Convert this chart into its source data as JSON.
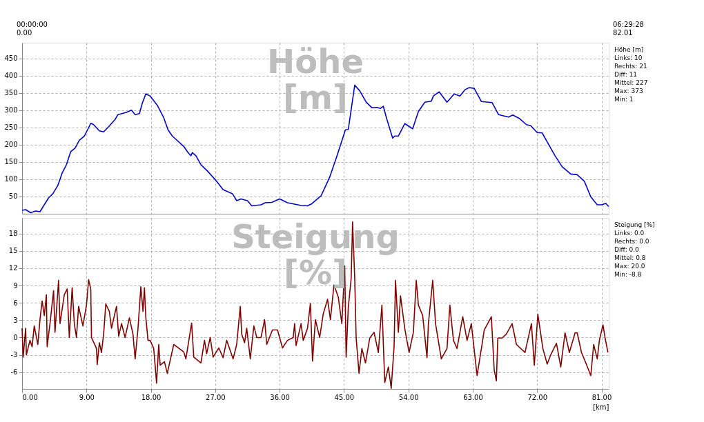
{
  "chart_data": [
    {
      "type": "line",
      "title": "Höhe [m]",
      "xlim": [
        0,
        82.01
      ],
      "ylim": [
        0,
        495
      ],
      "yticks": [
        50,
        100,
        150,
        200,
        250,
        300,
        350,
        400,
        450
      ],
      "xticks": [
        0,
        9,
        18,
        27,
        36,
        45,
        54,
        63,
        72,
        81
      ],
      "tick_labels": "y",
      "grid": true,
      "annotations": [
        "00:00:00",
        "0.00",
        "06:29:28",
        "82.01",
        "Höhe [m]",
        "Links: 10",
        "Rechts: 21",
        "Diff: 11",
        "Mittel: 227",
        "Max: 373",
        "Min: 1"
      ],
      "series": [
        {
          "color": "#0000cc",
          "x": [
            0,
            0.5,
            1.2,
            1.9,
            2.5,
            3.1,
            3.7,
            4.3,
            5.0,
            5.6,
            6.2,
            6.8,
            7.4,
            8.0,
            8.7,
            9.3,
            9.6,
            10.0,
            10.8,
            11.4,
            12.1,
            13.0,
            13.4,
            14.5,
            15.3,
            15.8,
            16.4,
            16.8,
            17.3,
            17.9,
            18.9,
            19.8,
            20.4,
            21.0,
            22.6,
            23.2,
            23.6,
            23.8,
            24.3,
            25.0,
            25.9,
            27.2,
            28.1,
            29.4,
            30.0,
            30.6,
            31.5,
            32.1,
            33.4,
            34.0,
            34.9,
            36.0,
            37.1,
            38.3,
            39.0,
            39.9,
            40.5,
            41.8,
            43.0,
            43.9,
            45.2,
            45.6,
            46.5,
            47.2,
            48.1,
            48.9,
            49.6,
            50.1,
            50.5,
            51.0,
            51.8,
            52.1,
            52.6,
            53.5,
            54.6,
            55.4,
            56.3,
            57.2,
            57.5,
            58.3,
            59.4,
            60.4,
            61.2,
            61.9,
            62.5,
            63.2,
            64.2,
            65.7,
            66.6,
            68.0,
            68.6,
            69.5,
            70.5,
            71.1,
            72.0,
            72.7,
            73.6,
            74.5,
            75.5,
            76.7,
            77.6,
            78.6,
            79.5,
            80.4,
            81.0,
            81.6,
            82.0
          ],
          "values": [
            10,
            12,
            3,
            8,
            6,
            26,
            46,
            58,
            82,
            118,
            142,
            180,
            190,
            213,
            225,
            249,
            262,
            258,
            240,
            237,
            252,
            273,
            287,
            293,
            300,
            287,
            290,
            320,
            347,
            341,
            314,
            278,
            243,
            225,
            195,
            177,
            168,
            177,
            168,
            142,
            124,
            94,
            70,
            58,
            38,
            43,
            38,
            23,
            26,
            32,
            33,
            43,
            32,
            27,
            24,
            23,
            29,
            52,
            106,
            160,
            243,
            244,
            372,
            356,
            323,
            307,
            308,
            305,
            311,
            273,
            219,
            225,
            225,
            261,
            246,
            296,
            323,
            326,
            341,
            353,
            323,
            347,
            341,
            359,
            365,
            363,
            325,
            322,
            287,
            280,
            286,
            276,
            258,
            255,
            235,
            234,
            201,
            168,
            136,
            115,
            113,
            94,
            49,
            26,
            26,
            30,
            21
          ]
        }
      ]
    },
    {
      "type": "line",
      "title": "Steigung [%]",
      "xlabel": "[km]",
      "xlim": [
        0,
        82.01
      ],
      "ylim": [
        -8.9,
        20.7
      ],
      "yticks": [
        -6,
        -3,
        0,
        3,
        6,
        9,
        12,
        15,
        18
      ],
      "xticks": [
        {
          "value": 0,
          "label": "0.00"
        },
        {
          "value": 9,
          "label": "9.00"
        },
        {
          "value": 18,
          "label": "18.00"
        },
        {
          "value": 27,
          "label": "27.00"
        },
        {
          "value": 36,
          "label": "36.00"
        },
        {
          "value": 45,
          "label": "45.00"
        },
        {
          "value": 54,
          "label": "54.00"
        },
        {
          "value": 63,
          "label": "63.00"
        },
        {
          "value": 72,
          "label": "72.00"
        },
        {
          "value": 81,
          "label": "81.00"
        }
      ],
      "grid": true,
      "annotations": [
        "Steigung [%]",
        "Links: 0.0",
        "Rechts: 0.0",
        "Diff: 0.0",
        "Mittel: 0.8",
        "Max: 20.0",
        "Min: -8.8"
      ],
      "series": [
        {
          "color": "#800000",
          "x": [
            0,
            0.15,
            0.5,
            0.6,
            1.1,
            1.4,
            1.7,
            2.2,
            2.5,
            2.8,
            3.1,
            3.4,
            3.5,
            3.9,
            4.4,
            4.6,
            5.1,
            5.3,
            5.9,
            6.3,
            6.6,
            7.0,
            7.3,
            7.6,
            7.9,
            8.5,
            9.0,
            9.3,
            9.6,
            9.7,
            10.4,
            10.5,
            10.8,
            11.1,
            11.4,
            11.7,
            12.2,
            12.5,
            13.2,
            13.5,
            13.9,
            14.4,
            15.0,
            15.5,
            15.8,
            16.2,
            16.6,
            16.9,
            17.1,
            17.3,
            17.6,
            17.9,
            18.4,
            18.8,
            19.1,
            19.3,
            19.9,
            20.3,
            21.0,
            21.2,
            22.6,
            22.9,
            23.7,
            24.0,
            25.0,
            25.5,
            25.8,
            26.3,
            26.7,
            27.5,
            28.1,
            28.6,
            29.5,
            30.0,
            30.5,
            30.7,
            31.1,
            31.4,
            31.9,
            32.4,
            32.8,
            33.4,
            33.9,
            34.2,
            35.0,
            35.7,
            36.4,
            37.1,
            37.9,
            38.1,
            38.3,
            39.0,
            39.3,
            39.9,
            40.3,
            40.6,
            41.0,
            41.6,
            42.1,
            42.7,
            43.1,
            43.6,
            44.2,
            44.7,
            45.1,
            45.3,
            45.6,
            46.0,
            46.2,
            46.5,
            46.7,
            47.1,
            47.5,
            48.0,
            48.6,
            49.2,
            49.8,
            50.3,
            50.7,
            51.2,
            51.6,
            52.0,
            52.2,
            52.6,
            52.9,
            53.5,
            54.1,
            54.7,
            55.1,
            55.4,
            56.0,
            56.6,
            56.8,
            57.4,
            57.8,
            58.6,
            59.4,
            59.8,
            60.3,
            60.8,
            61.6,
            62.2,
            62.8,
            63.6,
            64.3,
            64.6,
            65.6,
            66.0,
            66.3,
            66.5,
            67.1,
            67.7,
            68.5,
            69.1,
            70.3,
            71.2,
            71.6,
            72.1,
            72.8,
            73.4,
            73.9,
            74.7,
            75.3,
            75.9,
            76.5,
            77.3,
            77.6,
            78.2,
            78.8,
            79.5,
            79.9,
            80.4,
            80.7,
            81.2,
            81.5,
            81.9
          ],
          "values": [
            1.6,
            -3.4,
            1.6,
            -3,
            -0.5,
            -1.6,
            2,
            -1.2,
            3.1,
            6.3,
            3.8,
            7.4,
            -1.6,
            2.4,
            8.1,
            0.9,
            9.9,
            2.4,
            7.4,
            8.4,
            0,
            8.6,
            2.4,
            0,
            5.4,
            2,
            5.6,
            10,
            8.4,
            0,
            -1.9,
            -4.7,
            -0.9,
            -2.6,
            0.6,
            5.8,
            4.5,
            1.6,
            5.4,
            0.2,
            2.4,
            0,
            3.4,
            0.6,
            -3.7,
            1.5,
            8.8,
            4.5,
            8.6,
            3.4,
            -0.5,
            -0.5,
            -1.9,
            -7.9,
            -1.2,
            -4.8,
            -4.2,
            -6.2,
            -2.3,
            -1.2,
            -2.5,
            -3.7,
            2.5,
            -3.4,
            -4.4,
            -0.5,
            -2.8,
            0,
            -3.4,
            -1.8,
            -3.5,
            -0.5,
            -3.7,
            -1.2,
            5.4,
            0.6,
            -0.9,
            1.6,
            -3.7,
            2,
            0,
            0,
            3.1,
            -1.2,
            1.3,
            1.3,
            -1.8,
            -0.5,
            0,
            2.4,
            -1.4,
            2.4,
            -0.5,
            1.6,
            5.9,
            -4.1,
            3.1,
            0,
            4.1,
            6.6,
            3.1,
            9.1,
            7,
            2.4,
            12.4,
            -3.4,
            5.2,
            10.2,
            20.0,
            10.2,
            -0.1,
            -6.2,
            -1.9,
            -4.4,
            -0.1,
            0.9,
            -2.6,
            5.6,
            -7.8,
            -5.1,
            -8.8,
            -1.6,
            9.9,
            0.9,
            7.2,
            1.5,
            -2.6,
            0.9,
            9.9,
            5.6,
            3.8,
            -3.5,
            2.4,
            9.9,
            2.4,
            -3.7,
            -1.9,
            5.6,
            -0.5,
            -1.9,
            3.6,
            -0.5,
            2.4,
            -6.6,
            -1.2,
            1.3,
            3.6,
            -5.7,
            -7.5,
            -0.1,
            -0.1,
            0.6,
            2.4,
            -1.2,
            -2.6,
            2.4,
            -4.8,
            4,
            -1.9,
            -4.6,
            -3,
            -1,
            -5.1,
            0.8,
            -2.6,
            0.8,
            0.8,
            -2.6,
            -4.4,
            -6.6,
            -1.2,
            -3.7,
            -0.5,
            2.2,
            -0.1,
            -2.6
          ]
        }
      ]
    }
  ]
}
